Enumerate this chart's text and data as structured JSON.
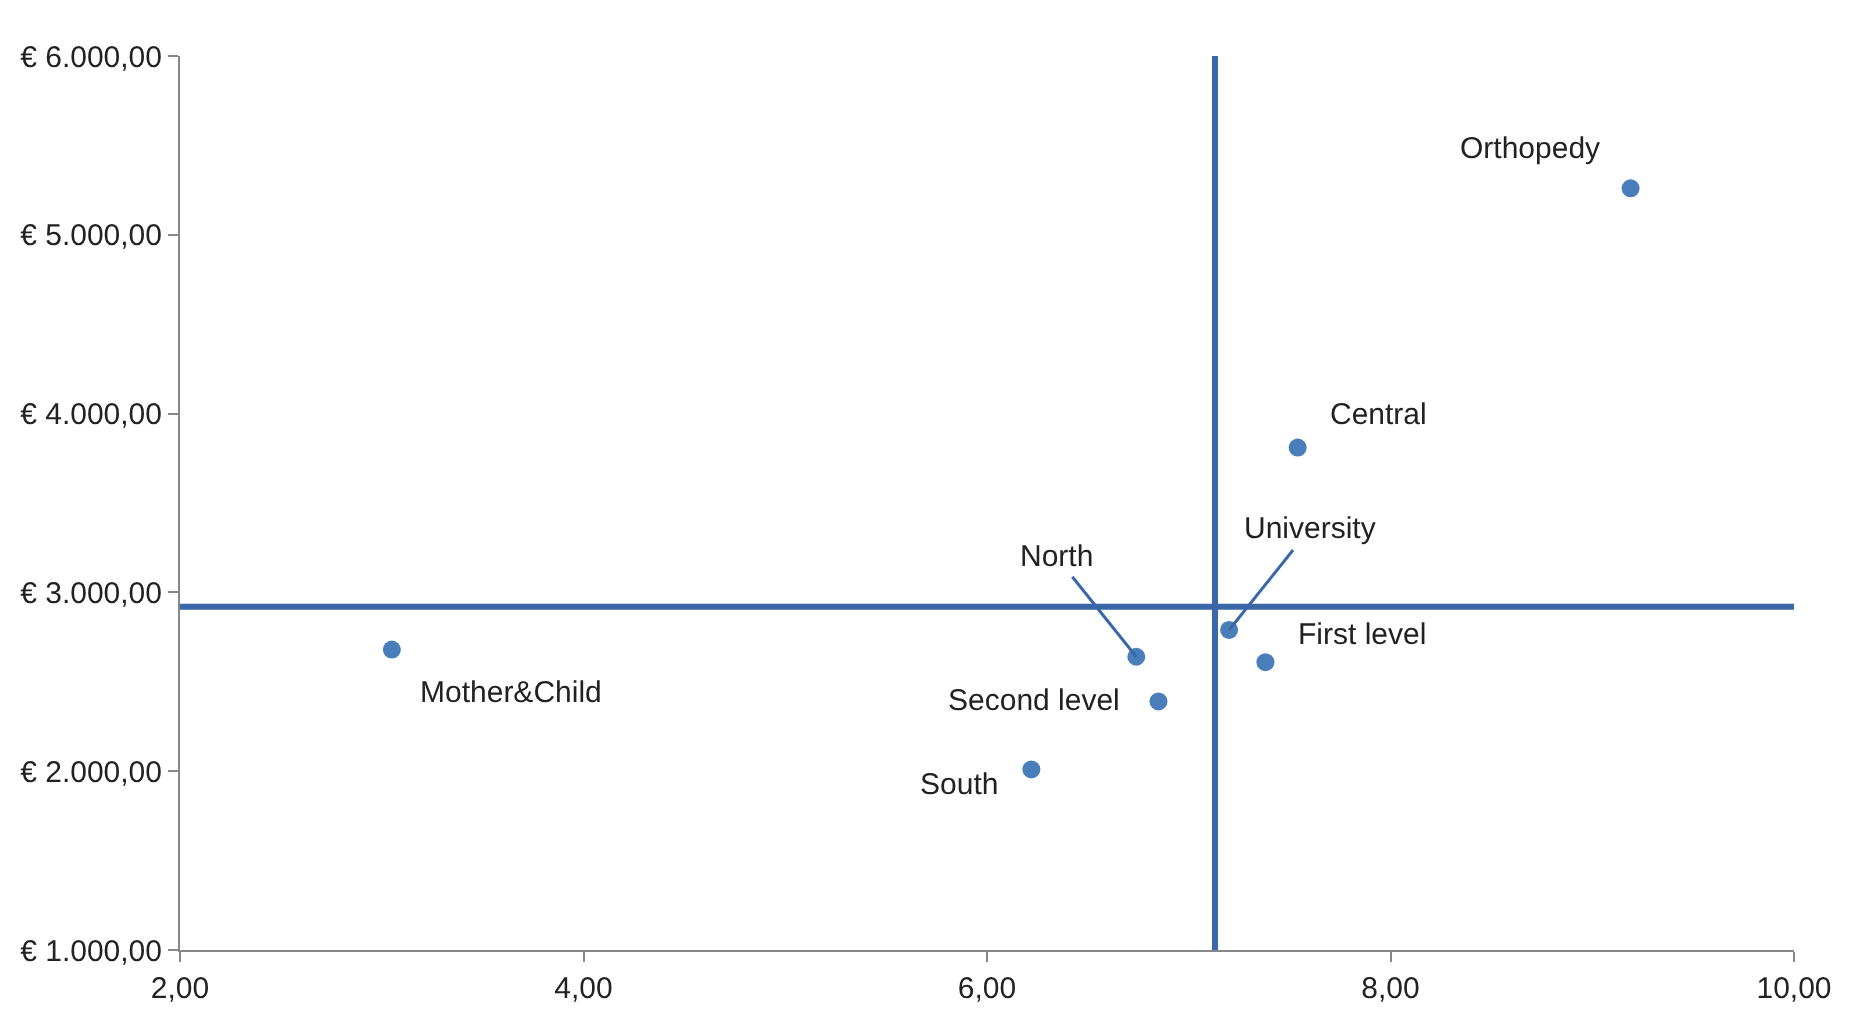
{
  "chart_data": {
    "type": "scatter",
    "x": [
      9.19,
      7.54,
      7.2,
      6.74,
      7.38,
      6.85,
      6.22,
      3.05
    ],
    "values": [
      5260,
      3810,
      2790,
      2640,
      2610,
      2390,
      2010,
      2680
    ],
    "color": "#4a7ebb",
    "marker": "circle",
    "annotations": [
      {
        "text": "Orthopedy",
        "x": 9.19,
        "y": 5260
      },
      {
        "text": "Central",
        "x": 7.54,
        "y": 3810
      },
      {
        "text": "University",
        "x": 7.2,
        "y": 2790
      },
      {
        "text": "North",
        "x": 6.74,
        "y": 2640
      },
      {
        "text": "First level",
        "x": 7.38,
        "y": 2610
      },
      {
        "text": "Second level",
        "x": 6.85,
        "y": 2390
      },
      {
        "text": "South",
        "x": 6.22,
        "y": 2010
      },
      {
        "text": "Mother&Child",
        "x": 3.05,
        "y": 2680
      }
    ],
    "ref_lines": [
      {
        "axis": "x",
        "value": 7.13,
        "color": "#3a67a8"
      },
      {
        "axis": "y",
        "value": 2920,
        "color": "#3a67a8"
      }
    ],
    "xlim": [
      2,
      10
    ],
    "xticks": [
      {
        "value": 2,
        "label": "2,00"
      },
      {
        "value": 4,
        "label": "4,00"
      },
      {
        "value": 6,
        "label": "6,00"
      },
      {
        "value": 8,
        "label": "8,00"
      },
      {
        "value": 10,
        "label": "10,00"
      }
    ],
    "ylim": [
      1000,
      6000
    ],
    "yticks": [
      {
        "value": 1000,
        "label": "€ 1.000,00"
      },
      {
        "value": 2000,
        "label": "€ 2.000,00"
      },
      {
        "value": 3000,
        "label": "€ 3.000,00"
      },
      {
        "value": 4000,
        "label": "€ 4.000,00"
      },
      {
        "value": 5000,
        "label": "€ 5.000,00"
      },
      {
        "value": 6000,
        "label": "€ 6.000,00"
      }
    ]
  }
}
